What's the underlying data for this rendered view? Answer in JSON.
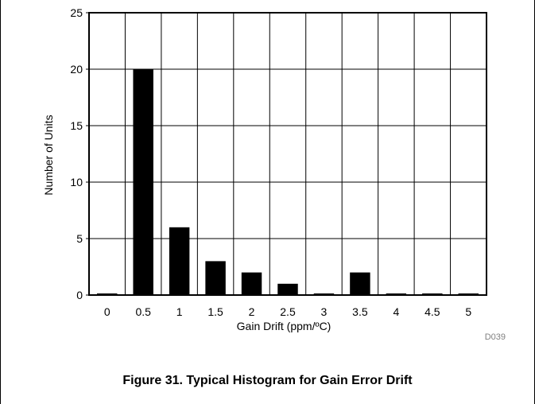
{
  "caption": "Figure 31. Typical Histogram for Gain Error Drift",
  "chart_data": {
    "type": "bar",
    "title": "",
    "xlabel": "Gain Drift (ppm/ºC)",
    "ylabel": "Number of Units",
    "categories": [
      "0",
      "0.5",
      "1",
      "1.5",
      "2",
      "2.5",
      "3",
      "3.5",
      "4",
      "4.5",
      "5"
    ],
    "values": [
      0,
      20,
      6,
      3,
      2,
      1,
      0,
      2,
      0,
      0,
      0
    ],
    "ylim": [
      0,
      25
    ],
    "yticks": [
      "0",
      "5",
      "10",
      "15",
      "20",
      "25"
    ],
    "grid": true,
    "bar_color": "#000000",
    "grid_color": "#000000",
    "annotation": "D039"
  }
}
